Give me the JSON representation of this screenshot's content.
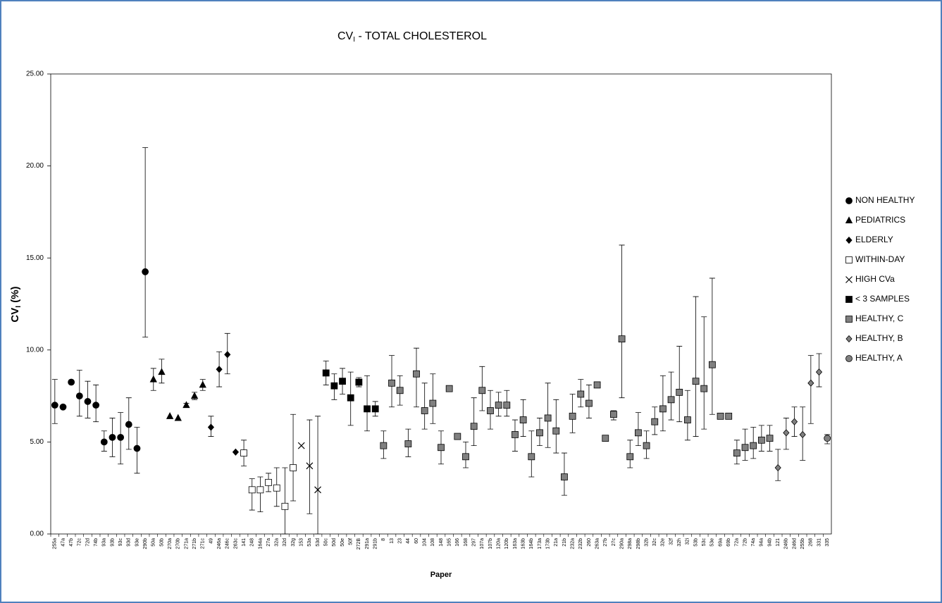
{
  "chart_data": {
    "type": "errorbar-scatter",
    "title": [
      "CV",
      "I",
      " - TOTAL CHOLESTEROL"
    ],
    "ylabel": [
      "CV",
      "I",
      " (%)"
    ],
    "xlabel": "Paper",
    "ylim": [
      0,
      25
    ],
    "yticks": [
      {
        "value": 0,
        "label": "0.00"
      },
      {
        "value": 5,
        "label": "5.00"
      },
      {
        "value": 10,
        "label": "10.00"
      },
      {
        "value": 15,
        "label": "15.00"
      },
      {
        "value": 20,
        "label": "20.00"
      },
      {
        "value": 25,
        "label": "25.00"
      }
    ],
    "legend": "right",
    "categories": [
      "255a",
      "47a",
      "47b",
      "72c",
      "72d",
      "74b",
      "93a",
      "93b",
      "93c",
      "93d",
      "93e",
      "290b",
      "50a",
      "50b",
      "270a",
      "270b",
      "271a",
      "271b",
      "271c",
      "49",
      "246a",
      "246c",
      "263c",
      "141",
      "248",
      "164a",
      "27a",
      "32a",
      "32d",
      "32g",
      "153",
      "53a",
      "53d",
      "50c",
      "50d",
      "50e",
      "50f",
      "272B",
      "291a",
      "291b",
      "8",
      "13",
      "23",
      "44",
      "60",
      "104",
      "108",
      "148",
      "165",
      "166",
      "168",
      "297",
      "107a",
      "107b",
      "120a",
      "120b",
      "163a",
      "163b",
      "164b",
      "173a",
      "173b",
      "21a",
      "21b",
      "232a",
      "232b",
      "260",
      "263a",
      "27b",
      "27c",
      "290a",
      "298a",
      "298b",
      "32b",
      "32c",
      "32e",
      "32f",
      "32h",
      "32i",
      "53b",
      "53c",
      "53e",
      "69a",
      "69b",
      "72a",
      "72b",
      "74a",
      "94a",
      "94b",
      "121",
      "246b",
      "246d",
      "255b",
      "268",
      "331",
      "335"
    ],
    "series": [
      {
        "name": "NON HEALTHY",
        "marker": "circle",
        "color": "#000000",
        "categories": [
          "255a",
          "47a",
          "47b",
          "72c",
          "72d",
          "74b",
          "93a",
          "93b",
          "93c",
          "93d",
          "93e",
          "290b"
        ],
        "values": [
          7.0,
          6.9,
          8.25,
          7.5,
          7.2,
          7.0,
          5.0,
          5.25,
          5.25,
          5.95,
          4.65,
          14.25
        ],
        "lower": [
          6.0,
          null,
          null,
          6.4,
          6.3,
          6.1,
          4.5,
          4.2,
          3.8,
          4.6,
          3.3,
          10.7
        ],
        "upper": [
          8.4,
          null,
          null,
          8.9,
          8.3,
          8.1,
          5.6,
          6.3,
          6.6,
          7.4,
          5.8,
          21.0
        ]
      },
      {
        "name": "PEDIATRICS",
        "marker": "triangle",
        "color": "#000000",
        "categories": [
          "50a",
          "50b",
          "270a",
          "270b",
          "271a",
          "271b",
          "271c"
        ],
        "values": [
          8.4,
          8.8,
          6.4,
          6.3,
          7.0,
          7.5,
          8.1
        ],
        "lower": [
          7.8,
          8.2,
          null,
          null,
          6.9,
          7.3,
          7.8
        ],
        "upper": [
          9.0,
          9.5,
          null,
          null,
          7.1,
          7.7,
          8.4
        ]
      },
      {
        "name": "ELDERLY",
        "marker": "diamond",
        "color": "#000000",
        "categories": [
          "49",
          "246a",
          "246c",
          "263c"
        ],
        "values": [
          5.8,
          8.95,
          9.75,
          4.45
        ],
        "lower": [
          5.3,
          8.0,
          8.7,
          null
        ],
        "upper": [
          6.4,
          9.9,
          10.9,
          null
        ]
      },
      {
        "name": "WITHIN-DAY",
        "marker": "square",
        "color": "#ffffff",
        "categories": [
          "141",
          "248",
          "164a",
          "27a",
          "32a",
          "32d",
          "32g"
        ],
        "values": [
          4.4,
          2.4,
          2.4,
          2.8,
          2.5,
          1.5,
          3.6
        ],
        "lower": [
          3.7,
          1.3,
          1.2,
          2.3,
          1.5,
          0,
          1.8
        ],
        "upper": [
          5.1,
          3.0,
          3.1,
          3.3,
          3.6,
          3.6,
          6.5
        ]
      },
      {
        "name": "HIGH CVa",
        "marker": "x",
        "color": "#000000",
        "categories": [
          "153",
          "53a",
          "53d"
        ],
        "values": [
          4.8,
          3.7,
          2.4
        ],
        "lower": [
          null,
          1.1,
          0
        ],
        "upper": [
          null,
          6.2,
          6.4
        ]
      },
      {
        "name": "< 3 SAMPLES",
        "marker": "square",
        "color": "#000000",
        "categories": [
          "50c",
          "50d",
          "50e",
          "50f",
          "272B",
          "291a",
          "291b"
        ],
        "values": [
          8.75,
          8.05,
          8.3,
          7.4,
          8.25,
          6.8,
          6.8
        ],
        "lower": [
          8.1,
          7.3,
          7.6,
          5.9,
          8.0,
          5.6,
          6.4
        ],
        "upper": [
          9.4,
          8.7,
          9.0,
          8.8,
          8.5,
          8.6,
          7.2
        ]
      },
      {
        "name": "HEALTHY, C",
        "marker": "square",
        "color": "#808080",
        "categories": [
          "8",
          "13",
          "23",
          "44",
          "60",
          "104",
          "108",
          "148",
          "165",
          "166",
          "168",
          "297",
          "107a",
          "107b",
          "120a",
          "120b",
          "163a",
          "163b",
          "164b",
          "173a",
          "173b",
          "21a",
          "21b",
          "232a",
          "232b",
          "260",
          "263a",
          "27b",
          "27c",
          "290a",
          "298a",
          "298b",
          "32b",
          "32c",
          "32e",
          "32f",
          "32h",
          "32i",
          "53b",
          "53c",
          "53e",
          "69a",
          "69b",
          "72a",
          "72b",
          "74a",
          "94a",
          "94b"
        ],
        "values": [
          4.8,
          8.2,
          7.8,
          4.9,
          8.7,
          6.7,
          7.1,
          4.7,
          7.9,
          5.3,
          4.2,
          5.85,
          7.8,
          6.7,
          7.0,
          7.0,
          5.4,
          6.2,
          4.2,
          5.5,
          6.3,
          5.6,
          3.1,
          6.4,
          7.6,
          7.1,
          8.1,
          5.2,
          6.5,
          10.6,
          4.2,
          5.5,
          4.8,
          6.1,
          6.8,
          7.3,
          7.7,
          6.2,
          8.3,
          7.9,
          9.2,
          6.4,
          6.4,
          4.4,
          4.7,
          4.8,
          5.1,
          5.2
        ],
        "lower": [
          4.1,
          6.9,
          7.0,
          4.2,
          6.9,
          5.7,
          6.0,
          3.8,
          null,
          null,
          3.6,
          4.8,
          6.7,
          5.7,
          6.4,
          6.4,
          4.5,
          5.3,
          3.1,
          4.8,
          4.7,
          4.4,
          2.1,
          5.5,
          6.9,
          6.3,
          null,
          null,
          6.2,
          7.4,
          3.6,
          4.8,
          4.1,
          5.4,
          5.6,
          6.2,
          6.1,
          5.1,
          5.3,
          5.7,
          6.5,
          null,
          null,
          3.8,
          4.0,
          4.1,
          4.5,
          4.5
        ],
        "upper": [
          5.6,
          9.7,
          8.6,
          5.7,
          10.1,
          8.2,
          8.7,
          5.6,
          null,
          null,
          5.0,
          7.4,
          9.1,
          7.8,
          7.7,
          7.8,
          6.2,
          7.3,
          5.6,
          6.3,
          8.2,
          7.3,
          4.4,
          7.6,
          8.4,
          8.1,
          null,
          null,
          6.7,
          15.7,
          5.1,
          6.6,
          5.6,
          6.9,
          8.6,
          8.8,
          10.2,
          7.8,
          12.9,
          11.8,
          13.9,
          null,
          null,
          5.1,
          5.7,
          5.8,
          5.9,
          5.9
        ]
      },
      {
        "name": "HEALTHY, B",
        "marker": "diamond",
        "color": "#808080",
        "categories": [
          "121",
          "246b",
          "246d",
          "255b",
          "268",
          "331"
        ],
        "values": [
          3.6,
          5.5,
          6.1,
          5.4,
          8.2,
          8.8
        ],
        "lower": [
          2.9,
          4.6,
          5.3,
          4.0,
          6.0,
          8.0
        ],
        "upper": [
          4.6,
          6.3,
          6.9,
          6.9,
          9.7,
          9.8
        ]
      },
      {
        "name": "HEALTHY, A",
        "marker": "circle",
        "color": "#808080",
        "categories": [
          "335"
        ],
        "values": [
          5.2
        ],
        "lower": [
          4.9
        ],
        "upper": [
          5.4
        ]
      }
    ]
  }
}
